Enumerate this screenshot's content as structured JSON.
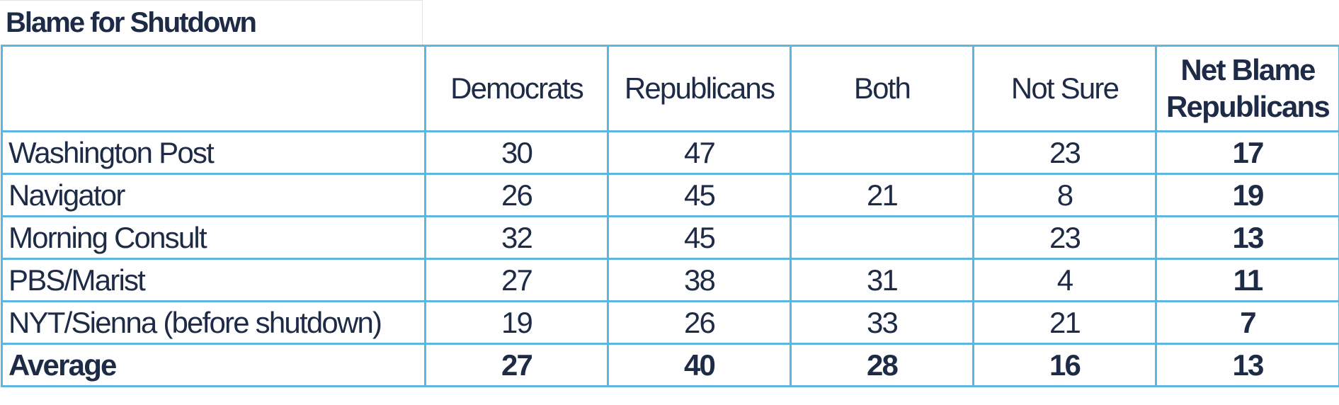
{
  "title": "Blame for Shutdown",
  "table": {
    "columns": [
      "Democrats",
      "Republicans",
      "Both",
      "Not Sure",
      "Net Blame Republicans"
    ],
    "rows": [
      [
        "Washington Post",
        30,
        47,
        null,
        23,
        17
      ],
      [
        "Navigator",
        26,
        45,
        21,
        8,
        19
      ],
      [
        "Morning Consult",
        32,
        45,
        null,
        23,
        13
      ],
      [
        "PBS/Marist",
        27,
        38,
        31,
        4,
        11
      ],
      [
        "NYT/Sienna (before shutdown)",
        19,
        26,
        33,
        21,
        7
      ],
      [
        "Average",
        27,
        40,
        28,
        16,
        13
      ]
    ]
  }
}
